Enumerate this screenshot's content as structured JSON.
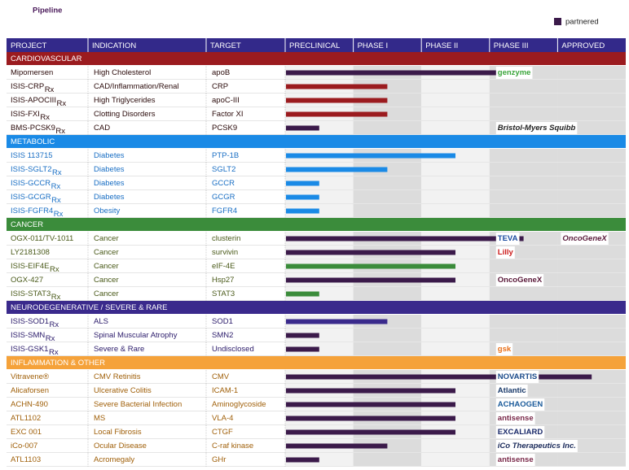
{
  "title": "Pipeline",
  "legend": "partnered",
  "partnered_color": "#3b1a4a",
  "header_color": "#33298a",
  "columns": [
    "PROJECT",
    "INDICATION",
    "TARGET",
    "PRECLINICAL",
    "PHASE I",
    "PHASE II",
    "PHASE III",
    "APPROVED"
  ],
  "groups": [
    {
      "name": "CARDIOVASCULAR",
      "color": "#9b1b1f",
      "text_color": "#2a0a0a",
      "rows": [
        {
          "project": "Mipomersen",
          "indication": "High Cholesterol",
          "target": "apoB",
          "progress": 3.5,
          "partnered": true,
          "partners": [
            {
              "name": "genzyme",
              "color": "#3aa53a"
            }
          ]
        },
        {
          "project": "ISIS-CRP",
          "sub": "Rx",
          "indication": "CAD/Inflammation/Renal",
          "target": "CRP",
          "progress": 1.5,
          "partnered": false,
          "partners": []
        },
        {
          "project": "ISIS-APOCIII",
          "sub": "Rx",
          "indication": "High Triglycerides",
          "target": "apoC-III",
          "progress": 1.5,
          "partnered": false,
          "partners": []
        },
        {
          "project": "ISIS-FXI",
          "sub": "Rx",
          "indication": "Clotting Disorders",
          "target": "Factor XI",
          "progress": 1.5,
          "partnered": false,
          "partners": []
        },
        {
          "project": "BMS-PCSK9",
          "sub": "Rx",
          "indication": "CAD",
          "target": "PCSK9",
          "progress": 0.5,
          "partnered": true,
          "partners": [
            {
              "name": "Bristol-Myers Squibb",
              "color": "#222222"
            }
          ]
        }
      ]
    },
    {
      "name": "METABOLIC",
      "color": "#1a8ae6",
      "text_color": "#1a6fc4",
      "rows": [
        {
          "project": "ISIS 113715",
          "indication": "Diabetes",
          "target": "PTP-1B",
          "progress": 2.5,
          "partnered": false,
          "partners": []
        },
        {
          "project": "ISIS-SGLT2",
          "sub": "Rx",
          "indication": "Diabetes",
          "target": "SGLT2",
          "progress": 1.5,
          "partnered": false,
          "partners": []
        },
        {
          "project": "ISIS-GCCR",
          "sub": "Rx",
          "indication": "Diabetes",
          "target": "GCCR",
          "progress": 0.5,
          "partnered": false,
          "partners": []
        },
        {
          "project": "ISIS-GCGR",
          "sub": "Rx",
          "indication": "Diabetes",
          "target": "GCGR",
          "progress": 0.5,
          "partnered": false,
          "partners": []
        },
        {
          "project": "ISIS-FGFR4",
          "sub": "Rx",
          "indication": "Obesity",
          "target": "FGFR4",
          "progress": 0.5,
          "partnered": false,
          "partners": []
        }
      ]
    },
    {
      "name": "CANCER",
      "color": "#3b8c3b",
      "text_color": "#4a5a1a",
      "rows": [
        {
          "project": "OGX-011/TV-1011",
          "indication": "Cancer",
          "target": "clusterin",
          "progress": 3.5,
          "partnered": true,
          "partners": [
            {
              "name": "TEVA",
              "color": "#1a4aa0"
            },
            {
              "name": "OncoGeneX",
              "color": "#5a1a3a"
            }
          ]
        },
        {
          "project": "LY2181308",
          "indication": "Cancer",
          "target": "survivin",
          "progress": 2.5,
          "partnered": true,
          "partners": [
            {
              "name": "Lilly",
              "color": "#cc1a1a"
            }
          ]
        },
        {
          "project": "ISIS-EIF4E",
          "sub": "Rx",
          "indication": "Cancer",
          "target": "eIF-4E",
          "progress": 2.5,
          "partnered": false,
          "partners": []
        },
        {
          "project": "OGX-427",
          "indication": "Cancer",
          "target": "Hsp27",
          "progress": 2.5,
          "partnered": true,
          "partners": [
            {
              "name": "OncoGeneX",
              "color": "#5a1a3a"
            }
          ]
        },
        {
          "project": "ISIS-STAT3",
          "sub": "Rx",
          "indication": "Cancer",
          "target": "STAT3",
          "progress": 0.5,
          "partnered": false,
          "partners": []
        }
      ]
    },
    {
      "name": "NEURODEGENERATIVE / SEVERE & RARE",
      "color": "#3a2a8c",
      "text_color": "#2a1a6a",
      "rows": [
        {
          "project": "ISIS-SOD1",
          "sub": "Rx",
          "indication": "ALS",
          "target": "SOD1",
          "progress": 1.5,
          "partnered": false,
          "partners": []
        },
        {
          "project": "ISIS-SMN",
          "sub": "Rx",
          "indication": "Spinal Muscular Atrophy",
          "target": "SMN2",
          "progress": 0.5,
          "partnered": true,
          "partners": []
        },
        {
          "project": "ISIS-GSK1",
          "sub": "Rx",
          "indication": "Severe & Rare",
          "target": "Undisclosed",
          "progress": 0.5,
          "partnered": true,
          "partners": [
            {
              "name": "gsk",
              "color": "#e8701a"
            }
          ]
        }
      ]
    },
    {
      "name": "INFLAMMATION & OTHER",
      "color": "#f5a23a",
      "text_color": "#a0600a",
      "rows": [
        {
          "project": "Vitravene®",
          "indication": "CMV Retinitis",
          "target": "CMV",
          "progress": 4.5,
          "partnered": true,
          "partners": [
            {
              "name": "NOVARTIS",
              "color": "#1a4a8a"
            }
          ]
        },
        {
          "project": "Alicaforsen",
          "indication": "Ulcerative Colitis",
          "target": "ICAM-1",
          "progress": 2.5,
          "partnered": true,
          "partners": [
            {
              "name": "Atlantic",
              "color": "#1a3a6a"
            }
          ]
        },
        {
          "project": "ACHN-490",
          "indication": "Severe Bacterial Infection",
          "target": "Aminoglycoside",
          "progress": 2.5,
          "partnered": true,
          "partners": [
            {
              "name": "ACHAOGEN",
              "color": "#1a5a9a"
            }
          ]
        },
        {
          "project": "ATL1102",
          "indication": "MS",
          "target": "VLA-4",
          "progress": 2.5,
          "partnered": true,
          "partners": [
            {
              "name": "antisense",
              "color": "#7a2a4a"
            }
          ]
        },
        {
          "project": "EXC 001",
          "indication": "Local Fibrosis",
          "target": "CTGF",
          "progress": 2.5,
          "partnered": true,
          "partners": [
            {
              "name": "EXCALIARD",
              "color": "#1a2a6a"
            }
          ]
        },
        {
          "project": "iCo-007",
          "indication": "Ocular Disease",
          "target": "C-raf kinase",
          "progress": 1.5,
          "partnered": true,
          "partners": [
            {
              "name": "iCo Therapeutics Inc.",
              "color": "#1a2a5a"
            }
          ]
        },
        {
          "project": "ATL1103",
          "indication": "Acromegaly",
          "target": "GHr",
          "progress": 0.5,
          "partnered": true,
          "partners": [
            {
              "name": "antisense",
              "color": "#7a2a4a"
            }
          ]
        }
      ]
    }
  ]
}
